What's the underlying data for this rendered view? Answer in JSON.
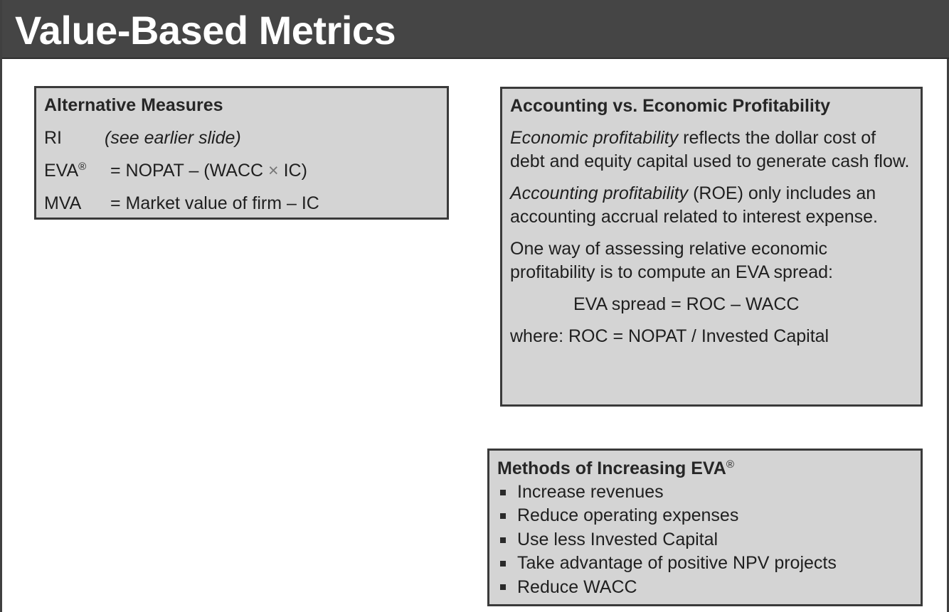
{
  "slide": {
    "title": "Value-Based Metrics"
  },
  "alternative_measures": {
    "heading": "Alternative Measures",
    "rows": [
      {
        "term": "RI",
        "term_mark": "",
        "definition": "(see earlier slide)"
      },
      {
        "term": "EVA",
        "term_mark": "®",
        "definition_prefix": "= NOPAT – (WACC ",
        "definition_times": "×",
        "definition_suffix": " IC)"
      },
      {
        "term": "MVA",
        "term_mark": "",
        "definition": "= Market value of firm – IC"
      }
    ]
  },
  "accounting_vs_economic": {
    "heading": "Accounting vs. Economic Profitability",
    "p1_em": "Economic profitability",
    "p1_rest": " reflects the dollar cost of debt and equity capital used to generate cash flow.",
    "p2_em": "Accounting profitability",
    "p2_rest": " (ROE) only includes an accounting accrual related to interest expense.",
    "p3": "One way of assessing relative economic profitability is to compute an EVA spread:",
    "formula": "EVA spread = ROC – WACC",
    "where": "where: ROC = NOPAT / Invested Capital"
  },
  "methods": {
    "heading": "Methods of Increasing EVA",
    "heading_mark": "®",
    "items": [
      "Increase revenues",
      "Reduce operating expenses",
      "Use less Invested Capital",
      "Take advantage of positive NPV projects",
      "Reduce WACC"
    ]
  }
}
